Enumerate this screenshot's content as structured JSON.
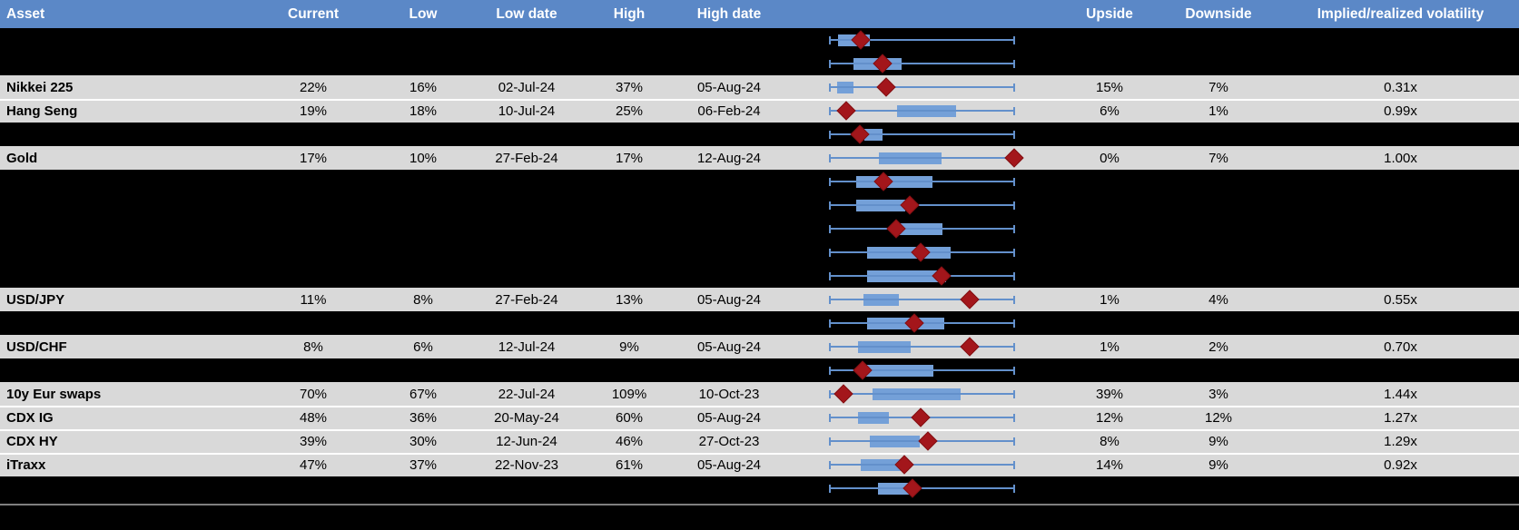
{
  "colors": {
    "header_bg": "#5b88c7",
    "header_text": "#ffffff",
    "row_gray": "#d9d9d9",
    "row_black": "#000000",
    "box_fill": "#74a0d8",
    "whisker_blue": "#6390cb",
    "diamond_red": "#a3161b",
    "row_separator_white": "#ffffff",
    "footer_line_gray": "#7f7f7f"
  },
  "header": {
    "asset": "Asset",
    "current": "Current",
    "low": "Low",
    "low_date": "Low date",
    "high": "High",
    "high_date": "High date",
    "upside": "Upside",
    "downside": "Downside",
    "vol": "Implied/realized volatility"
  },
  "rows": [
    {
      "type": "black",
      "asset": "",
      "current": "",
      "low": "",
      "low_date": "",
      "high": "",
      "high_date": "",
      "upside": "",
      "downside": "",
      "vol": "",
      "plot": {
        "box_start": 4.9,
        "box_end": 22.1,
        "diamond": 17.1
      }
    },
    {
      "type": "black",
      "asset": "",
      "current": "",
      "low": "",
      "low_date": "",
      "high": "",
      "high_date": "",
      "upside": "",
      "downside": "",
      "vol": "",
      "plot": {
        "box_start": 13.2,
        "box_end": 39.0,
        "diamond": 28.8
      }
    },
    {
      "type": "gray",
      "asset": "Nikkei 225",
      "current": "22%",
      "low": "16%",
      "low_date": "02-Jul-24",
      "high": "37%",
      "high_date": "05-Aug-24",
      "upside": "15%",
      "downside": "7%",
      "vol": "0.31x",
      "plot": {
        "box_start": 4.4,
        "box_end": 13.2,
        "diamond": 30.7
      }
    },
    {
      "type": "gray",
      "asset": "Hang Seng",
      "current": "19%",
      "low": "18%",
      "low_date": "10-Jul-24",
      "high": "25%",
      "high_date": "06-Feb-24",
      "upside": "6%",
      "downside": "1%",
      "vol": "0.99x",
      "plot": {
        "box_start": 36.6,
        "box_end": 68.3,
        "diamond": 9.3
      }
    },
    {
      "type": "black",
      "asset": "",
      "current": "",
      "low": "",
      "low_date": "",
      "high": "",
      "high_date": "",
      "upside": "",
      "downside": "",
      "vol": "",
      "plot": {
        "box_start": 19.0,
        "box_end": 28.8,
        "diamond": 16.6
      }
    },
    {
      "type": "gray",
      "asset": "Gold",
      "current": "17%",
      "low": "10%",
      "low_date": "27-Feb-24",
      "high": "17%",
      "high_date": "12-Aug-24",
      "upside": "0%",
      "downside": "7%",
      "vol": "1.00x",
      "plot": {
        "box_start": 26.8,
        "box_end": 60.5,
        "diamond": 99.5
      }
    },
    {
      "type": "black",
      "asset": "",
      "current": "",
      "low": "",
      "low_date": "",
      "high": "",
      "high_date": "",
      "upside": "",
      "downside": "",
      "vol": "",
      "plot": {
        "box_start": 14.6,
        "box_end": 55.6,
        "diamond": 29.3
      }
    },
    {
      "type": "black",
      "asset": "",
      "current": "",
      "low": "",
      "low_date": "",
      "high": "",
      "high_date": "",
      "upside": "",
      "downside": "",
      "vol": "",
      "plot": {
        "box_start": 14.6,
        "box_end": 41.0,
        "diamond": 43.4
      }
    },
    {
      "type": "black",
      "asset": "",
      "current": "",
      "low": "",
      "low_date": "",
      "high": "",
      "high_date": "",
      "upside": "",
      "downside": "",
      "vol": "",
      "plot": {
        "box_start": 37.6,
        "box_end": 61.0,
        "diamond": 36.1
      }
    },
    {
      "type": "black",
      "asset": "",
      "current": "",
      "low": "",
      "low_date": "",
      "high": "",
      "high_date": "",
      "upside": "",
      "downside": "",
      "vol": "",
      "plot": {
        "box_start": 20.5,
        "box_end": 65.4,
        "diamond": 49.3
      }
    },
    {
      "type": "black",
      "asset": "",
      "current": "",
      "low": "",
      "low_date": "",
      "high": "",
      "high_date": "",
      "upside": "",
      "downside": "",
      "vol": "",
      "plot": {
        "box_start": 20.5,
        "box_end": 62.9,
        "diamond": 60.5
      }
    },
    {
      "type": "gray",
      "asset": "USD/JPY",
      "current": "11%",
      "low": "8%",
      "low_date": "27-Feb-24",
      "high": "13%",
      "high_date": "05-Aug-24",
      "upside": "1%",
      "downside": "4%",
      "vol": "0.55x",
      "plot": {
        "box_start": 18.5,
        "box_end": 37.6,
        "diamond": 75.6
      }
    },
    {
      "type": "black",
      "asset": "",
      "current": "",
      "low": "",
      "low_date": "",
      "high": "",
      "high_date": "",
      "upside": "",
      "downside": "",
      "vol": "",
      "plot": {
        "box_start": 20.5,
        "box_end": 62.0,
        "diamond": 45.9
      }
    },
    {
      "type": "gray",
      "asset": "USD/CHF",
      "current": "8%",
      "low": "6%",
      "low_date": "12-Jul-24",
      "high": "9%",
      "high_date": "05-Aug-24",
      "upside": "1%",
      "downside": "2%",
      "vol": "0.70x",
      "plot": {
        "box_start": 15.6,
        "box_end": 43.9,
        "diamond": 75.6
      }
    },
    {
      "type": "black",
      "asset": "",
      "current": "",
      "low": "",
      "low_date": "",
      "high": "",
      "high_date": "",
      "upside": "",
      "downside": "",
      "vol": "",
      "plot": {
        "box_start": 19.5,
        "box_end": 56.1,
        "diamond": 18.0
      }
    },
    {
      "type": "gray",
      "asset": "10y Eur swaps",
      "current": "70%",
      "low": "67%",
      "low_date": "22-Jul-24",
      "high": "109%",
      "high_date": "10-Oct-23",
      "upside": "39%",
      "downside": "3%",
      "vol": "1.44x",
      "plot": {
        "box_start": 23.4,
        "box_end": 70.7,
        "diamond": 7.8
      }
    },
    {
      "type": "gray",
      "asset": "CDX IG",
      "current": "48%",
      "low": "36%",
      "low_date": "20-May-24",
      "high": "60%",
      "high_date": "05-Aug-24",
      "upside": "12%",
      "downside": "12%",
      "vol": "1.27x",
      "plot": {
        "box_start": 15.6,
        "box_end": 32.2,
        "diamond": 49.3
      }
    },
    {
      "type": "gray",
      "asset": "CDX HY",
      "current": "39%",
      "low": "30%",
      "low_date": "12-Jun-24",
      "high": "46%",
      "high_date": "27-Oct-23",
      "upside": "8%",
      "downside": "9%",
      "vol": "1.29x",
      "plot": {
        "box_start": 22.0,
        "box_end": 48.8,
        "diamond": 53.2
      }
    },
    {
      "type": "gray",
      "asset": "iTraxx",
      "current": "47%",
      "low": "37%",
      "low_date": "22-Nov-23",
      "high": "61%",
      "high_date": "05-Aug-24",
      "upside": "14%",
      "downside": "9%",
      "vol": "0.92x",
      "plot": {
        "box_start": 17.1,
        "box_end": 39.0,
        "diamond": 40.5
      }
    },
    {
      "type": "black",
      "asset": "",
      "current": "",
      "low": "",
      "low_date": "",
      "high": "",
      "high_date": "",
      "upside": "",
      "downside": "",
      "vol": "",
      "plot": {
        "box_start": 26.3,
        "box_end": 46.3,
        "diamond": 44.9
      }
    }
  ],
  "chart_data": {
    "type": "table",
    "description": "Implied volatility range table; each row embeds a horizontal box-whisker range plot (whisker = low-to-high 1y range, blue box = interquartile band, red diamond = current level). box_start/box_end/diamond are percent positions along the whisker span.",
    "columns": [
      "Asset",
      "Current",
      "Low",
      "Low date",
      "High",
      "High date",
      "Range plot",
      "Upside",
      "Downside",
      "Implied/realized volatility"
    ],
    "named_rows": [
      {
        "asset": "Nikkei 225",
        "current": "22%",
        "low": "16%",
        "low_date": "02-Jul-24",
        "high": "37%",
        "high_date": "05-Aug-24",
        "upside": "15%",
        "downside": "7%",
        "implied_realized": "0.31x",
        "diamond_pct": 30.7
      },
      {
        "asset": "Hang Seng",
        "current": "19%",
        "low": "18%",
        "low_date": "10-Jul-24",
        "high": "25%",
        "high_date": "06-Feb-24",
        "upside": "6%",
        "downside": "1%",
        "implied_realized": "0.99x",
        "diamond_pct": 9.3
      },
      {
        "asset": "Gold",
        "current": "17%",
        "low": "10%",
        "low_date": "27-Feb-24",
        "high": "17%",
        "high_date": "12-Aug-24",
        "upside": "0%",
        "downside": "7%",
        "implied_realized": "1.00x",
        "diamond_pct": 99.5
      },
      {
        "asset": "USD/JPY",
        "current": "11%",
        "low": "8%",
        "low_date": "27-Feb-24",
        "high": "13%",
        "high_date": "05-Aug-24",
        "upside": "1%",
        "downside": "4%",
        "implied_realized": "0.55x",
        "diamond_pct": 75.6
      },
      {
        "asset": "USD/CHF",
        "current": "8%",
        "low": "6%",
        "low_date": "12-Jul-24",
        "high": "9%",
        "high_date": "05-Aug-24",
        "upside": "1%",
        "downside": "2%",
        "implied_realized": "0.70x",
        "diamond_pct": 75.6
      },
      {
        "asset": "10y Eur swaps",
        "current": "70%",
        "low": "67%",
        "low_date": "22-Jul-24",
        "high": "109%",
        "high_date": "10-Oct-23",
        "upside": "39%",
        "downside": "3%",
        "implied_realized": "1.44x",
        "diamond_pct": 7.8
      },
      {
        "asset": "CDX IG",
        "current": "48%",
        "low": "36%",
        "low_date": "20-May-24",
        "high": "60%",
        "high_date": "05-Aug-24",
        "upside": "12%",
        "downside": "12%",
        "implied_realized": "1.27x",
        "diamond_pct": 49.3
      },
      {
        "asset": "CDX HY",
        "current": "39%",
        "low": "30%",
        "low_date": "12-Jun-24",
        "high": "46%",
        "high_date": "27-Oct-23",
        "upside": "8%",
        "downside": "9%",
        "implied_realized": "1.29x",
        "diamond_pct": 53.2
      },
      {
        "asset": "iTraxx",
        "current": "47%",
        "low": "37%",
        "low_date": "22-Nov-23",
        "high": "61%",
        "high_date": "05-Aug-24",
        "upside": "14%",
        "downside": "9%",
        "implied_realized": "0.92x",
        "diamond_pct": 40.5
      }
    ],
    "unnamed_plot_rows_pct": [
      {
        "box_start": 4.9,
        "box_end": 22.1,
        "diamond": 17.1
      },
      {
        "box_start": 13.2,
        "box_end": 39.0,
        "diamond": 28.8
      },
      {
        "box_start": 19.0,
        "box_end": 28.8,
        "diamond": 16.6
      },
      {
        "box_start": 14.6,
        "box_end": 55.6,
        "diamond": 29.3
      },
      {
        "box_start": 14.6,
        "box_end": 41.0,
        "diamond": 43.4
      },
      {
        "box_start": 37.6,
        "box_end": 61.0,
        "diamond": 36.1
      },
      {
        "box_start": 20.5,
        "box_end": 65.4,
        "diamond": 49.3
      },
      {
        "box_start": 20.5,
        "box_end": 62.9,
        "diamond": 60.5
      },
      {
        "box_start": 20.5,
        "box_end": 62.0,
        "diamond": 45.9
      },
      {
        "box_start": 19.5,
        "box_end": 56.1,
        "diamond": 18.0
      },
      {
        "box_start": 26.3,
        "box_end": 46.3,
        "diamond": 44.9
      }
    ],
    "legend_position": "none",
    "grid": false
  }
}
